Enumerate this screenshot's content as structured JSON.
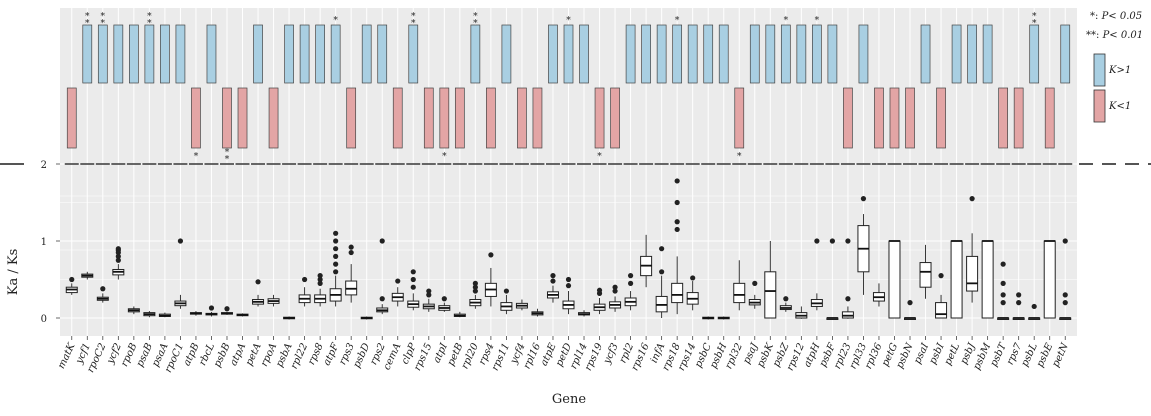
{
  "chart_data": {
    "type": "boxplot",
    "xlabel": "Gene",
    "ylabel": "Ka / Ks",
    "yticks": [
      0,
      1,
      2
    ],
    "ylim": [
      -0.1,
      4.3
    ],
    "colors": {
      "k_gt_1": "#a9cfe2",
      "k_lt_1": "#e3a5a5",
      "panel": "#ebebeb",
      "grid": "#ffffff"
    },
    "legend": {
      "sig": [
        {
          "mark": "*: ",
          "label": "P< 0.05"
        },
        {
          "mark": "**: ",
          "label": "P< 0.01"
        }
      ],
      "k_gt_1_label": "K>1",
      "k_lt_1_label": "K<1"
    },
    "genes": [
      {
        "name": "matK",
        "k": "lt",
        "stars": "",
        "box": [
          0.3,
          0.33,
          0.37,
          0.4,
          0.45
        ],
        "out": [
          0.5
        ]
      },
      {
        "name": "ycf1",
        "k": "gt",
        "stars": "**",
        "box": [
          0.5,
          0.53,
          0.55,
          0.57,
          0.6
        ],
        "out": []
      },
      {
        "name": "rpoC2",
        "k": "gt",
        "stars": "**",
        "box": [
          0.2,
          0.23,
          0.25,
          0.27,
          0.32
        ],
        "out": [
          0.38
        ]
      },
      {
        "name": "ycf2",
        "k": "gt",
        "stars": "",
        "box": [
          0.5,
          0.56,
          0.6,
          0.63,
          0.7
        ],
        "out": [
          0.75,
          0.8,
          0.85,
          0.88,
          0.9
        ]
      },
      {
        "name": "rpoB",
        "k": "gt",
        "stars": "",
        "box": [
          0.05,
          0.08,
          0.1,
          0.12,
          0.15
        ],
        "out": []
      },
      {
        "name": "psaB",
        "k": "gt",
        "stars": "**",
        "box": [
          0.01,
          0.03,
          0.05,
          0.07,
          0.09
        ],
        "out": []
      },
      {
        "name": "psaA",
        "k": "gt",
        "stars": "",
        "box": [
          0.01,
          0.02,
          0.03,
          0.05,
          0.07
        ],
        "out": []
      },
      {
        "name": "rpoC1",
        "k": "gt",
        "stars": "",
        "box": [
          0.12,
          0.16,
          0.19,
          0.22,
          0.3
        ],
        "out": [
          1.0
        ]
      },
      {
        "name": "atpB",
        "k": "lt",
        "stars": "*",
        "box": [
          0.03,
          0.05,
          0.06,
          0.07,
          0.09
        ],
        "out": []
      },
      {
        "name": "rbcL",
        "k": "gt",
        "stars": "",
        "box": [
          0.02,
          0.04,
          0.05,
          0.06,
          0.08
        ],
        "out": [
          0.13
        ]
      },
      {
        "name": "psbB",
        "k": "lt",
        "stars": "**",
        "box": [
          0.04,
          0.05,
          0.06,
          0.07,
          0.08
        ],
        "out": [
          0.12
        ]
      },
      {
        "name": "atpA",
        "k": "lt",
        "stars": "",
        "box": [
          0.02,
          0.03,
          0.04,
          0.05,
          0.06
        ],
        "out": []
      },
      {
        "name": "petA",
        "k": "gt",
        "stars": "",
        "box": [
          0.15,
          0.18,
          0.21,
          0.24,
          0.3
        ],
        "out": [
          0.47
        ]
      },
      {
        "name": "rpoA",
        "k": "lt",
        "stars": "",
        "box": [
          0.15,
          0.19,
          0.22,
          0.25,
          0.3
        ],
        "out": []
      },
      {
        "name": "psbA",
        "k": "gt",
        "stars": "",
        "box": [
          -0.02,
          -0.01,
          0.0,
          0.01,
          0.02
        ],
        "out": []
      },
      {
        "name": "rpl22",
        "k": "gt",
        "stars": "",
        "box": [
          0.15,
          0.2,
          0.25,
          0.3,
          0.4
        ],
        "out": [
          0.5
        ]
      },
      {
        "name": "rps8",
        "k": "gt",
        "stars": "",
        "box": [
          0.15,
          0.2,
          0.25,
          0.3,
          0.38
        ],
        "out": [
          0.45,
          0.5,
          0.55
        ]
      },
      {
        "name": "atpF",
        "k": "gt",
        "stars": "*",
        "box": [
          0.15,
          0.22,
          0.3,
          0.38,
          0.55
        ],
        "out": [
          0.6,
          0.7,
          0.8,
          0.9,
          1.0,
          1.1
        ]
      },
      {
        "name": "rps3",
        "k": "lt",
        "stars": "",
        "box": [
          0.2,
          0.3,
          0.38,
          0.48,
          0.7
        ],
        "out": [
          0.85,
          0.92
        ]
      },
      {
        "name": "psbD",
        "k": "gt",
        "stars": "",
        "box": [
          -0.02,
          -0.01,
          0.0,
          0.01,
          0.02
        ],
        "out": []
      },
      {
        "name": "rps2",
        "k": "gt",
        "stars": "",
        "box": [
          0.05,
          0.08,
          0.1,
          0.13,
          0.18
        ],
        "out": [
          0.25,
          1.0
        ]
      },
      {
        "name": "cemA",
        "k": "lt",
        "stars": "",
        "box": [
          0.15,
          0.22,
          0.27,
          0.32,
          0.4
        ],
        "out": [
          0.48
        ]
      },
      {
        "name": "clpP",
        "k": "gt",
        "stars": "**",
        "box": [
          0.1,
          0.14,
          0.18,
          0.22,
          0.32
        ],
        "out": [
          0.4,
          0.5,
          0.6
        ]
      },
      {
        "name": "rps15",
        "k": "lt",
        "stars": "",
        "box": [
          0.08,
          0.12,
          0.15,
          0.18,
          0.25
        ],
        "out": [
          0.3,
          0.35
        ]
      },
      {
        "name": "atpI",
        "k": "lt",
        "stars": "*",
        "box": [
          0.08,
          0.1,
          0.13,
          0.16,
          0.2
        ],
        "out": [
          0.25
        ]
      },
      {
        "name": "petB",
        "k": "lt",
        "stars": "",
        "box": [
          0.01,
          0.02,
          0.03,
          0.05,
          0.08
        ],
        "out": []
      },
      {
        "name": "rpl20",
        "k": "gt",
        "stars": "**",
        "box": [
          0.12,
          0.16,
          0.2,
          0.24,
          0.3
        ],
        "out": [
          0.35,
          0.4,
          0.45
        ]
      },
      {
        "name": "rps4",
        "k": "lt",
        "stars": "",
        "box": [
          0.15,
          0.28,
          0.37,
          0.45,
          0.65
        ],
        "out": [
          0.82
        ]
      },
      {
        "name": "rps11",
        "k": "gt",
        "stars": "",
        "box": [
          0.05,
          0.1,
          0.15,
          0.2,
          0.3
        ],
        "out": [
          0.35
        ]
      },
      {
        "name": "ycf4",
        "k": "lt",
        "stars": "",
        "box": [
          0.1,
          0.13,
          0.16,
          0.19,
          0.24
        ],
        "out": []
      },
      {
        "name": "rpl16",
        "k": "lt",
        "stars": "",
        "box": [
          0.02,
          0.04,
          0.06,
          0.08,
          0.12
        ],
        "out": []
      },
      {
        "name": "atpE",
        "k": "gt",
        "stars": "",
        "box": [
          0.2,
          0.26,
          0.3,
          0.34,
          0.42
        ],
        "out": [
          0.48,
          0.55
        ]
      },
      {
        "name": "petD",
        "k": "gt",
        "stars": "*",
        "box": [
          0.05,
          0.12,
          0.17,
          0.22,
          0.35
        ],
        "out": [
          0.42,
          0.5
        ]
      },
      {
        "name": "rpl14",
        "k": "gt",
        "stars": "",
        "box": [
          0.02,
          0.04,
          0.05,
          0.07,
          0.1
        ],
        "out": []
      },
      {
        "name": "rps19",
        "k": "lt",
        "stars": "*",
        "box": [
          0.05,
          0.1,
          0.14,
          0.18,
          0.26
        ],
        "out": [
          0.32,
          0.36
        ]
      },
      {
        "name": "ycf3",
        "k": "lt",
        "stars": "",
        "box": [
          0.08,
          0.13,
          0.17,
          0.21,
          0.28
        ],
        "out": [
          0.35,
          0.4
        ]
      },
      {
        "name": "rpl2",
        "k": "gt",
        "stars": "",
        "box": [
          0.1,
          0.16,
          0.21,
          0.26,
          0.35
        ],
        "out": [
          0.45,
          0.55
        ]
      },
      {
        "name": "rps16",
        "k": "gt",
        "stars": "",
        "box": [
          0.4,
          0.55,
          0.68,
          0.8,
          1.08
        ],
        "out": []
      },
      {
        "name": "infA",
        "k": "gt",
        "stars": "",
        "box": [
          0.0,
          0.08,
          0.17,
          0.28,
          0.55
        ],
        "out": [
          0.6,
          0.9
        ]
      },
      {
        "name": "rps18",
        "k": "gt",
        "stars": "*",
        "box": [
          0.05,
          0.2,
          0.3,
          0.45,
          0.8
        ],
        "out": [
          1.15,
          1.25,
          1.5,
          1.78
        ]
      },
      {
        "name": "rps14",
        "k": "gt",
        "stars": "",
        "box": [
          0.1,
          0.18,
          0.25,
          0.33,
          0.48
        ],
        "out": [
          0.52
        ]
      },
      {
        "name": "psbC",
        "k": "gt",
        "stars": "",
        "box": [
          -0.02,
          -0.01,
          0.0,
          0.01,
          0.02
        ],
        "out": []
      },
      {
        "name": "psbH",
        "k": "gt",
        "stars": "",
        "box": [
          -0.02,
          -0.01,
          0.0,
          0.01,
          0.02
        ],
        "out": []
      },
      {
        "name": "rpl32",
        "k": "lt",
        "stars": "*",
        "box": [
          0.1,
          0.2,
          0.3,
          0.45,
          0.75
        ],
        "out": []
      },
      {
        "name": "psaJ",
        "k": "gt",
        "stars": "",
        "box": [
          0.12,
          0.17,
          0.2,
          0.24,
          0.3
        ],
        "out": [
          0.45
        ]
      },
      {
        "name": "psbK",
        "k": "gt",
        "stars": "",
        "box": [
          0.0,
          0.0,
          0.35,
          0.6,
          1.0
        ],
        "out": []
      },
      {
        "name": "psbZ",
        "k": "gt",
        "stars": "*",
        "box": [
          0.08,
          0.11,
          0.13,
          0.16,
          0.2
        ],
        "out": [
          0.25
        ]
      },
      {
        "name": "rps12",
        "k": "gt",
        "stars": "",
        "box": [
          -0.01,
          0.0,
          0.03,
          0.07,
          0.15
        ],
        "out": []
      },
      {
        "name": "atpH",
        "k": "gt",
        "stars": "*",
        "box": [
          0.1,
          0.15,
          0.19,
          0.24,
          0.32
        ],
        "out": [
          1.0
        ]
      },
      {
        "name": "psbF",
        "k": "gt",
        "stars": "",
        "box": [
          0.0,
          0.0,
          0.0,
          0.0,
          0.0
        ],
        "out": [
          1.0
        ]
      },
      {
        "name": "rpl23",
        "k": "lt",
        "stars": "",
        "box": [
          -0.01,
          0.0,
          0.03,
          0.08,
          0.15
        ],
        "out": [
          0.25,
          1.0
        ]
      },
      {
        "name": "rpl33",
        "k": "gt",
        "stars": "",
        "box": [
          0.3,
          0.6,
          0.9,
          1.2,
          1.35
        ],
        "out": [
          1.55
        ]
      },
      {
        "name": "rpl36",
        "k": "lt",
        "stars": "",
        "box": [
          0.15,
          0.22,
          0.27,
          0.33,
          0.45
        ],
        "out": []
      },
      {
        "name": "petG",
        "k": "lt",
        "stars": "",
        "box": [
          0.0,
          0.0,
          1.0,
          1.0,
          1.0
        ],
        "out": []
      },
      {
        "name": "psbN",
        "k": "lt",
        "stars": "",
        "box": [
          0.0,
          0.0,
          0.0,
          0.0,
          0.0
        ],
        "out": [
          0.2
        ]
      },
      {
        "name": "psaI",
        "k": "gt",
        "stars": "",
        "box": [
          0.25,
          0.4,
          0.6,
          0.72,
          0.95
        ],
        "out": []
      },
      {
        "name": "psbI",
        "k": "lt",
        "stars": "",
        "box": [
          0.0,
          0.0,
          0.05,
          0.2,
          0.3
        ],
        "out": [
          0.55
        ]
      },
      {
        "name": "petL",
        "k": "gt",
        "stars": "",
        "box": [
          0.0,
          0.0,
          1.0,
          1.0,
          1.0
        ],
        "out": []
      },
      {
        "name": "psbJ",
        "k": "gt",
        "stars": "",
        "box": [
          0.2,
          0.35,
          0.45,
          0.8,
          1.1
        ],
        "out": [
          1.55
        ]
      },
      {
        "name": "psbM",
        "k": "gt",
        "stars": "",
        "box": [
          0.0,
          0.0,
          1.0,
          1.0,
          1.0
        ],
        "out": []
      },
      {
        "name": "psbT",
        "k": "lt",
        "stars": "",
        "box": [
          0.0,
          0.0,
          0.0,
          0.0,
          0.0
        ],
        "out": [
          0.2,
          0.3,
          0.45,
          0.7
        ]
      },
      {
        "name": "rps7",
        "k": "lt",
        "stars": "",
        "box": [
          0.0,
          0.0,
          0.0,
          0.0,
          0.0
        ],
        "out": [
          0.2,
          0.3
        ]
      },
      {
        "name": "psbL",
        "k": "gt",
        "stars": "**",
        "box": [
          0.0,
          0.0,
          0.0,
          0.0,
          0.0
        ],
        "out": [
          0.15
        ]
      },
      {
        "name": "psbE",
        "k": "lt",
        "stars": "",
        "box": [
          0.0,
          0.0,
          1.0,
          1.0,
          1.0
        ],
        "out": []
      },
      {
        "name": "petN",
        "k": "gt",
        "stars": "",
        "box": [
          0.0,
          0.0,
          0.0,
          0.0,
          0.0
        ],
        "out": [
          0.2,
          0.3,
          1.0
        ]
      }
    ]
  }
}
